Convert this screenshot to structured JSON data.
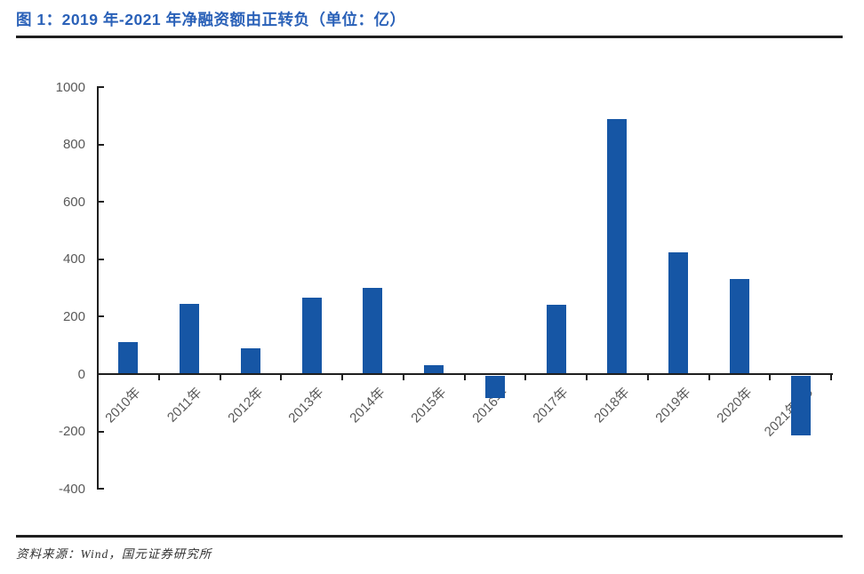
{
  "header": {
    "title": "图 1：2019 年-2021 年净融资额由正转负（单位：亿）"
  },
  "footer": {
    "source": "资料来源：Wind，国元证券研究所"
  },
  "chart_data": {
    "type": "bar",
    "title": "图 1：2019 年-2021 年净融资额由正转负（单位：亿）",
    "categories": [
      "2010年",
      "2011年",
      "2012年",
      "2013年",
      "2014年",
      "2015年",
      "2016年",
      "2017年",
      "2018年",
      "2019年",
      "2020年",
      "2021年1-9"
    ],
    "values": [
      110,
      245,
      90,
      265,
      300,
      30,
      -85,
      240,
      890,
      425,
      330,
      -215
    ],
    "xlabel": "",
    "ylabel": "",
    "ylim": [
      -400,
      1000
    ],
    "yticks": [
      1000,
      800,
      600,
      400,
      200,
      0,
      -200,
      -400
    ],
    "grid": false,
    "legend": false,
    "bar_color": "#1656A5",
    "axis_color": "#1f1f1f",
    "tick_label_color": "#595959",
    "title_color": "#2A61B8"
  }
}
